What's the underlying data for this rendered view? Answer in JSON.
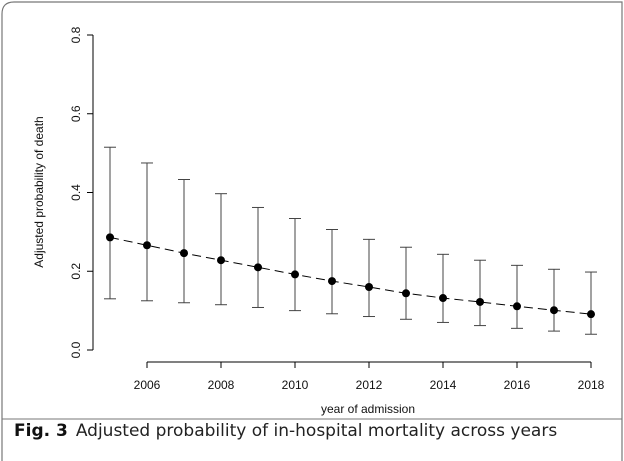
{
  "chart_data": {
    "type": "errorbar",
    "caption_label": "Fig. 3",
    "caption": "Adjusted probability of in-hospital mortality across years",
    "x_label": "year of admission",
    "y_label": "Adjusted probability of death",
    "x": [
      2005,
      2006,
      2007,
      2008,
      2009,
      2010,
      2011,
      2012,
      2013,
      2014,
      2015,
      2016,
      2017,
      2018
    ],
    "values": [
      0.286,
      0.266,
      0.246,
      0.228,
      0.21,
      0.192,
      0.175,
      0.16,
      0.144,
      0.132,
      0.122,
      0.111,
      0.101,
      0.091
    ],
    "upper": [
      0.515,
      0.475,
      0.433,
      0.397,
      0.362,
      0.334,
      0.306,
      0.281,
      0.261,
      0.243,
      0.228,
      0.215,
      0.205,
      0.198
    ],
    "lower": [
      0.13,
      0.125,
      0.12,
      0.115,
      0.108,
      0.1,
      0.092,
      0.085,
      0.078,
      0.07,
      0.062,
      0.055,
      0.048,
      0.04
    ],
    "color": "#000000",
    "xlim": [
      2005,
      2018
    ],
    "xticks": [
      2006,
      2008,
      2010,
      2012,
      2014,
      2016,
      2018
    ],
    "ylim": [
      0,
      0.8
    ],
    "yticks": [
      {
        "value": 0,
        "label": "0.0"
      },
      0.2,
      0.4,
      0.6,
      0.8
    ]
  }
}
